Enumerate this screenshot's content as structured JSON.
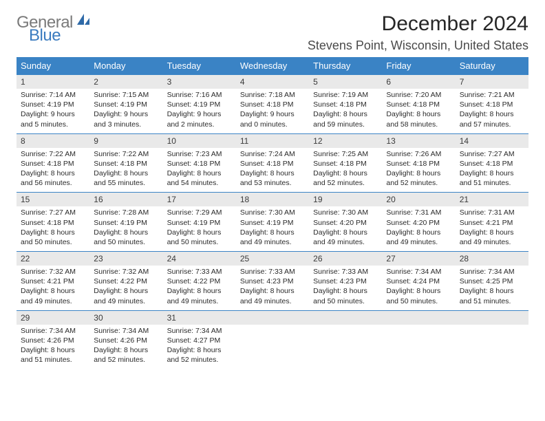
{
  "logo": {
    "word1": "General",
    "word2": "Blue"
  },
  "title": "December 2024",
  "location": "Stevens Point, Wisconsin, United States",
  "colors": {
    "header_bg": "#3a83c5",
    "header_border": "#3a83c5",
    "daynum_bg": "#e9e9e9",
    "logo_gray": "#7a7a7a",
    "logo_blue": "#3a7bbf"
  },
  "weekdays": [
    "Sunday",
    "Monday",
    "Tuesday",
    "Wednesday",
    "Thursday",
    "Friday",
    "Saturday"
  ],
  "weeks": [
    [
      {
        "n": "1",
        "sunrise": "Sunrise: 7:14 AM",
        "sunset": "Sunset: 4:19 PM",
        "daylight": "Daylight: 9 hours and 5 minutes."
      },
      {
        "n": "2",
        "sunrise": "Sunrise: 7:15 AM",
        "sunset": "Sunset: 4:19 PM",
        "daylight": "Daylight: 9 hours and 3 minutes."
      },
      {
        "n": "3",
        "sunrise": "Sunrise: 7:16 AM",
        "sunset": "Sunset: 4:19 PM",
        "daylight": "Daylight: 9 hours and 2 minutes."
      },
      {
        "n": "4",
        "sunrise": "Sunrise: 7:18 AM",
        "sunset": "Sunset: 4:18 PM",
        "daylight": "Daylight: 9 hours and 0 minutes."
      },
      {
        "n": "5",
        "sunrise": "Sunrise: 7:19 AM",
        "sunset": "Sunset: 4:18 PM",
        "daylight": "Daylight: 8 hours and 59 minutes."
      },
      {
        "n": "6",
        "sunrise": "Sunrise: 7:20 AM",
        "sunset": "Sunset: 4:18 PM",
        "daylight": "Daylight: 8 hours and 58 minutes."
      },
      {
        "n": "7",
        "sunrise": "Sunrise: 7:21 AM",
        "sunset": "Sunset: 4:18 PM",
        "daylight": "Daylight: 8 hours and 57 minutes."
      }
    ],
    [
      {
        "n": "8",
        "sunrise": "Sunrise: 7:22 AM",
        "sunset": "Sunset: 4:18 PM",
        "daylight": "Daylight: 8 hours and 56 minutes."
      },
      {
        "n": "9",
        "sunrise": "Sunrise: 7:22 AM",
        "sunset": "Sunset: 4:18 PM",
        "daylight": "Daylight: 8 hours and 55 minutes."
      },
      {
        "n": "10",
        "sunrise": "Sunrise: 7:23 AM",
        "sunset": "Sunset: 4:18 PM",
        "daylight": "Daylight: 8 hours and 54 minutes."
      },
      {
        "n": "11",
        "sunrise": "Sunrise: 7:24 AM",
        "sunset": "Sunset: 4:18 PM",
        "daylight": "Daylight: 8 hours and 53 minutes."
      },
      {
        "n": "12",
        "sunrise": "Sunrise: 7:25 AM",
        "sunset": "Sunset: 4:18 PM",
        "daylight": "Daylight: 8 hours and 52 minutes."
      },
      {
        "n": "13",
        "sunrise": "Sunrise: 7:26 AM",
        "sunset": "Sunset: 4:18 PM",
        "daylight": "Daylight: 8 hours and 52 minutes."
      },
      {
        "n": "14",
        "sunrise": "Sunrise: 7:27 AM",
        "sunset": "Sunset: 4:18 PM",
        "daylight": "Daylight: 8 hours and 51 minutes."
      }
    ],
    [
      {
        "n": "15",
        "sunrise": "Sunrise: 7:27 AM",
        "sunset": "Sunset: 4:18 PM",
        "daylight": "Daylight: 8 hours and 50 minutes."
      },
      {
        "n": "16",
        "sunrise": "Sunrise: 7:28 AM",
        "sunset": "Sunset: 4:19 PM",
        "daylight": "Daylight: 8 hours and 50 minutes."
      },
      {
        "n": "17",
        "sunrise": "Sunrise: 7:29 AM",
        "sunset": "Sunset: 4:19 PM",
        "daylight": "Daylight: 8 hours and 50 minutes."
      },
      {
        "n": "18",
        "sunrise": "Sunrise: 7:30 AM",
        "sunset": "Sunset: 4:19 PM",
        "daylight": "Daylight: 8 hours and 49 minutes."
      },
      {
        "n": "19",
        "sunrise": "Sunrise: 7:30 AM",
        "sunset": "Sunset: 4:20 PM",
        "daylight": "Daylight: 8 hours and 49 minutes."
      },
      {
        "n": "20",
        "sunrise": "Sunrise: 7:31 AM",
        "sunset": "Sunset: 4:20 PM",
        "daylight": "Daylight: 8 hours and 49 minutes."
      },
      {
        "n": "21",
        "sunrise": "Sunrise: 7:31 AM",
        "sunset": "Sunset: 4:21 PM",
        "daylight": "Daylight: 8 hours and 49 minutes."
      }
    ],
    [
      {
        "n": "22",
        "sunrise": "Sunrise: 7:32 AM",
        "sunset": "Sunset: 4:21 PM",
        "daylight": "Daylight: 8 hours and 49 minutes."
      },
      {
        "n": "23",
        "sunrise": "Sunrise: 7:32 AM",
        "sunset": "Sunset: 4:22 PM",
        "daylight": "Daylight: 8 hours and 49 minutes."
      },
      {
        "n": "24",
        "sunrise": "Sunrise: 7:33 AM",
        "sunset": "Sunset: 4:22 PM",
        "daylight": "Daylight: 8 hours and 49 minutes."
      },
      {
        "n": "25",
        "sunrise": "Sunrise: 7:33 AM",
        "sunset": "Sunset: 4:23 PM",
        "daylight": "Daylight: 8 hours and 49 minutes."
      },
      {
        "n": "26",
        "sunrise": "Sunrise: 7:33 AM",
        "sunset": "Sunset: 4:23 PM",
        "daylight": "Daylight: 8 hours and 50 minutes."
      },
      {
        "n": "27",
        "sunrise": "Sunrise: 7:34 AM",
        "sunset": "Sunset: 4:24 PM",
        "daylight": "Daylight: 8 hours and 50 minutes."
      },
      {
        "n": "28",
        "sunrise": "Sunrise: 7:34 AM",
        "sunset": "Sunset: 4:25 PM",
        "daylight": "Daylight: 8 hours and 51 minutes."
      }
    ],
    [
      {
        "n": "29",
        "sunrise": "Sunrise: 7:34 AM",
        "sunset": "Sunset: 4:26 PM",
        "daylight": "Daylight: 8 hours and 51 minutes."
      },
      {
        "n": "30",
        "sunrise": "Sunrise: 7:34 AM",
        "sunset": "Sunset: 4:26 PM",
        "daylight": "Daylight: 8 hours and 52 minutes."
      },
      {
        "n": "31",
        "sunrise": "Sunrise: 7:34 AM",
        "sunset": "Sunset: 4:27 PM",
        "daylight": "Daylight: 8 hours and 52 minutes."
      },
      {
        "blank": true
      },
      {
        "blank": true
      },
      {
        "blank": true
      },
      {
        "blank": true
      }
    ]
  ]
}
